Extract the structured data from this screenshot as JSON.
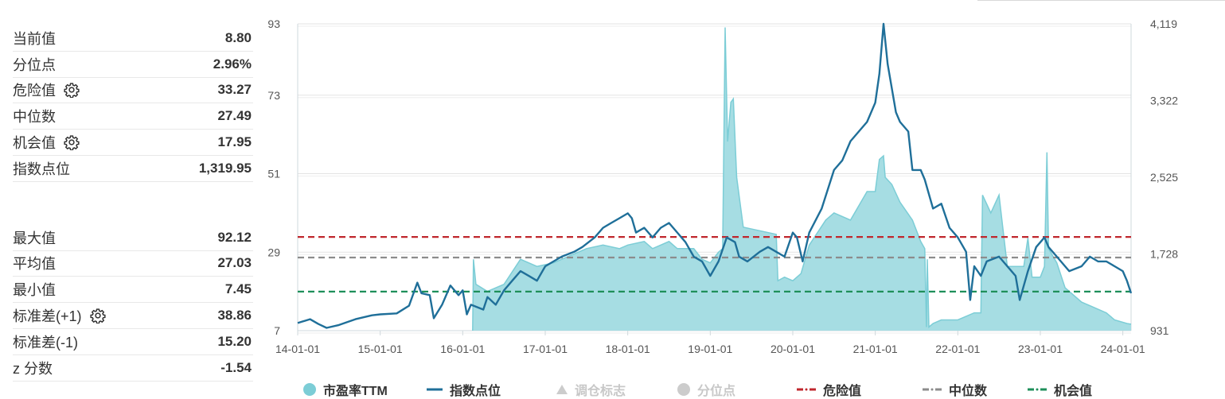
{
  "stats_top": [
    {
      "label": "当前值",
      "value": "8.80",
      "gear": false
    },
    {
      "label": "分位点",
      "value": "2.96%",
      "gear": false
    },
    {
      "label": "危险值",
      "value": "33.27",
      "gear": true
    },
    {
      "label": "中位数",
      "value": "27.49",
      "gear": false
    },
    {
      "label": "机会值",
      "value": "17.95",
      "gear": true
    },
    {
      "label": "指数点位",
      "value": "1,319.95",
      "gear": false
    }
  ],
  "stats_bottom": [
    {
      "label": "最大值",
      "value": "92.12",
      "gear": false
    },
    {
      "label": "平均值",
      "value": "27.03",
      "gear": false
    },
    {
      "label": "最小值",
      "value": "7.45",
      "gear": false
    },
    {
      "label": "标准差(+1)",
      "value": "38.86",
      "gear": true
    },
    {
      "label": "标准差(-1)",
      "value": "15.20",
      "gear": false
    },
    {
      "label": "z 分数",
      "value": "-1.54",
      "gear": false
    }
  ],
  "legend": [
    {
      "label": "市盈率TTM",
      "symbol": "dot",
      "color": "#7ccdd6",
      "active": true
    },
    {
      "label": "指数点位",
      "symbol": "line",
      "color": "#1f6f99",
      "active": true
    },
    {
      "label": "调仓标志",
      "symbol": "triangle",
      "color": "#cccccc",
      "active": false
    },
    {
      "label": "分位点",
      "symbol": "dot",
      "color": "#cccccc",
      "active": false
    },
    {
      "label": "危险值",
      "symbol": "dash",
      "color": "#c0272d",
      "active": true
    },
    {
      "label": "中位数",
      "symbol": "dash",
      "color": "#8c8c8c",
      "active": true
    },
    {
      "label": "机会值",
      "symbol": "dash",
      "color": "#1e8f5a",
      "active": true
    }
  ],
  "colors": {
    "pe_fill": "#a6dde3",
    "pe_line": "#7ccdd6",
    "index_line": "#1f6f99",
    "danger": "#c0272d",
    "median": "#8c8c8c",
    "chance": "#1e8f5a"
  },
  "chart_data": {
    "type": "area",
    "x_ticks": [
      "14-01-01",
      "15-01-01",
      "16-01-01",
      "17-01-01",
      "18-01-01",
      "19-01-01",
      "20-01-01",
      "21-01-01",
      "22-01-01",
      "23-01-01",
      "24-01-01"
    ],
    "y_left_ticks": [
      "93",
      "73",
      "51",
      "29",
      "7"
    ],
    "y_left_range": [
      7,
      93
    ],
    "y_right_ticks": [
      "4,119",
      "3,322",
      "2,525",
      "1,728",
      "931"
    ],
    "y_right_range": [
      931,
      4119
    ],
    "reference_lines": {
      "危险值": 33.27,
      "中位数": 27.49,
      "机会值": 17.95
    },
    "series": [
      {
        "name": "市盈率TTM",
        "axis": "left",
        "points": [
          [
            2016.12,
            7
          ],
          [
            2016.13,
            27
          ],
          [
            2016.16,
            20
          ],
          [
            2016.3,
            18
          ],
          [
            2016.5,
            20
          ],
          [
            2016.7,
            27
          ],
          [
            2016.9,
            25
          ],
          [
            2017.1,
            26
          ],
          [
            2017.3,
            28
          ],
          [
            2017.5,
            30
          ],
          [
            2017.7,
            31
          ],
          [
            2017.9,
            30
          ],
          [
            2018.0,
            31
          ],
          [
            2018.2,
            32
          ],
          [
            2018.3,
            30
          ],
          [
            2018.4,
            31
          ],
          [
            2018.5,
            32
          ],
          [
            2018.6,
            30
          ],
          [
            2018.8,
            30
          ],
          [
            2018.9,
            27
          ],
          [
            2019.0,
            26
          ],
          [
            2019.1,
            29
          ],
          [
            2019.15,
            30
          ],
          [
            2019.18,
            92
          ],
          [
            2019.21,
            60
          ],
          [
            2019.25,
            71
          ],
          [
            2019.28,
            72
          ],
          [
            2019.32,
            50
          ],
          [
            2019.4,
            36
          ],
          [
            2019.6,
            35
          ],
          [
            2019.8,
            34
          ],
          [
            2019.82,
            21
          ],
          [
            2019.9,
            22
          ],
          [
            2020.0,
            21
          ],
          [
            2020.1,
            23
          ],
          [
            2020.2,
            31
          ],
          [
            2020.4,
            38
          ],
          [
            2020.5,
            40
          ],
          [
            2020.7,
            38
          ],
          [
            2020.9,
            46
          ],
          [
            2021.0,
            46
          ],
          [
            2021.05,
            55
          ],
          [
            2021.1,
            56
          ],
          [
            2021.12,
            50
          ],
          [
            2021.2,
            48
          ],
          [
            2021.3,
            43
          ],
          [
            2021.45,
            38
          ],
          [
            2021.55,
            32
          ],
          [
            2021.6,
            30
          ],
          [
            2021.62,
            8
          ],
          [
            2021.63,
            27
          ],
          [
            2021.65,
            8
          ],
          [
            2021.7,
            9
          ],
          [
            2021.8,
            10
          ],
          [
            2021.9,
            10
          ],
          [
            2022.0,
            10
          ],
          [
            2022.2,
            12
          ],
          [
            2022.28,
            12
          ],
          [
            2022.3,
            45
          ],
          [
            2022.4,
            40
          ],
          [
            2022.5,
            45
          ],
          [
            2022.55,
            35
          ],
          [
            2022.6,
            25
          ],
          [
            2022.8,
            25
          ],
          [
            2022.85,
            33
          ],
          [
            2022.9,
            22
          ],
          [
            2023.0,
            22
          ],
          [
            2023.05,
            25
          ],
          [
            2023.08,
            57
          ],
          [
            2023.1,
            30
          ],
          [
            2023.2,
            26
          ],
          [
            2023.3,
            19
          ],
          [
            2023.5,
            15
          ],
          [
            2023.6,
            14
          ],
          [
            2023.8,
            12
          ],
          [
            2023.9,
            10
          ],
          [
            2024.05,
            9
          ],
          [
            2024.1,
            8.8
          ]
        ]
      },
      {
        "name": "指数点位",
        "axis": "right",
        "points": [
          [
            2014.0,
            1010
          ],
          [
            2014.15,
            1050
          ],
          [
            2014.25,
            1000
          ],
          [
            2014.35,
            960
          ],
          [
            2014.5,
            990
          ],
          [
            2014.7,
            1050
          ],
          [
            2014.9,
            1090
          ],
          [
            2015.0,
            1100
          ],
          [
            2015.2,
            1110
          ],
          [
            2015.35,
            1190
          ],
          [
            2015.45,
            1430
          ],
          [
            2015.5,
            1320
          ],
          [
            2015.6,
            1300
          ],
          [
            2015.65,
            1060
          ],
          [
            2015.75,
            1200
          ],
          [
            2015.85,
            1400
          ],
          [
            2015.95,
            1300
          ],
          [
            2016.0,
            1350
          ],
          [
            2016.05,
            1100
          ],
          [
            2016.1,
            1200
          ],
          [
            2016.25,
            1150
          ],
          [
            2016.3,
            1280
          ],
          [
            2016.4,
            1200
          ],
          [
            2016.5,
            1350
          ],
          [
            2016.6,
            1450
          ],
          [
            2016.7,
            1550
          ],
          [
            2016.8,
            1500
          ],
          [
            2016.9,
            1450
          ],
          [
            2017.0,
            1600
          ],
          [
            2017.1,
            1650
          ],
          [
            2017.2,
            1700
          ],
          [
            2017.35,
            1750
          ],
          [
            2017.45,
            1800
          ],
          [
            2017.6,
            1900
          ],
          [
            2017.7,
            2000
          ],
          [
            2017.8,
            2050
          ],
          [
            2017.9,
            2100
          ],
          [
            2018.0,
            2150
          ],
          [
            2018.05,
            2100
          ],
          [
            2018.1,
            1950
          ],
          [
            2018.2,
            2000
          ],
          [
            2018.3,
            1900
          ],
          [
            2018.4,
            2000
          ],
          [
            2018.5,
            2050
          ],
          [
            2018.6,
            1950
          ],
          [
            2018.7,
            1850
          ],
          [
            2018.8,
            1700
          ],
          [
            2018.9,
            1650
          ],
          [
            2019.0,
            1500
          ],
          [
            2019.1,
            1650
          ],
          [
            2019.2,
            1900
          ],
          [
            2019.3,
            1850
          ],
          [
            2019.35,
            1700
          ],
          [
            2019.45,
            1650
          ],
          [
            2019.6,
            1750
          ],
          [
            2019.7,
            1800
          ],
          [
            2019.8,
            1750
          ],
          [
            2019.9,
            1700
          ],
          [
            2020.0,
            1950
          ],
          [
            2020.05,
            1900
          ],
          [
            2020.12,
            1650
          ],
          [
            2020.2,
            1950
          ],
          [
            2020.35,
            2200
          ],
          [
            2020.5,
            2600
          ],
          [
            2020.6,
            2700
          ],
          [
            2020.7,
            2900
          ],
          [
            2020.8,
            3000
          ],
          [
            2020.9,
            3100
          ],
          [
            2021.0,
            3300
          ],
          [
            2021.05,
            3600
          ],
          [
            2021.1,
            4119
          ],
          [
            2021.15,
            3700
          ],
          [
            2021.25,
            3200
          ],
          [
            2021.3,
            3100
          ],
          [
            2021.4,
            3000
          ],
          [
            2021.45,
            2600
          ],
          [
            2021.55,
            2600
          ],
          [
            2021.6,
            2500
          ],
          [
            2021.7,
            2200
          ],
          [
            2021.8,
            2250
          ],
          [
            2021.9,
            2000
          ],
          [
            2022.0,
            1900
          ],
          [
            2022.1,
            1750
          ],
          [
            2022.15,
            1250
          ],
          [
            2022.2,
            1600
          ],
          [
            2022.28,
            1500
          ],
          [
            2022.35,
            1650
          ],
          [
            2022.5,
            1700
          ],
          [
            2022.6,
            1600
          ],
          [
            2022.7,
            1500
          ],
          [
            2022.75,
            1250
          ],
          [
            2022.85,
            1550
          ],
          [
            2022.95,
            1800
          ],
          [
            2023.05,
            1900
          ],
          [
            2023.1,
            1800
          ],
          [
            2023.2,
            1700
          ],
          [
            2023.35,
            1550
          ],
          [
            2023.5,
            1600
          ],
          [
            2023.6,
            1700
          ],
          [
            2023.7,
            1650
          ],
          [
            2023.8,
            1650
          ],
          [
            2023.9,
            1600
          ],
          [
            2024.0,
            1550
          ],
          [
            2024.05,
            1450
          ],
          [
            2024.1,
            1320
          ]
        ]
      }
    ],
    "x_range": [
      2014.0,
      2024.1
    ]
  }
}
